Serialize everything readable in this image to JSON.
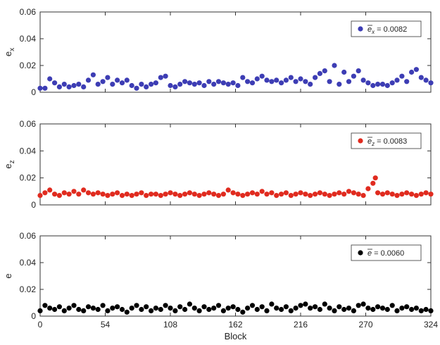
{
  "chart_data": [
    {
      "type": "scatter",
      "ylabel": "e_x",
      "ylabel_main": "e",
      "ylabel_sub": "x",
      "xlim": [
        0,
        324
      ],
      "ylim": [
        0,
        0.06
      ],
      "yticks": [
        0,
        0.02,
        0.04,
        0.06
      ],
      "ytick_labels": [
        "0",
        "0.02",
        "0.04",
        "0.06"
      ],
      "grid": false,
      "legend_position": "top-right",
      "series": [
        {
          "name": "ē_x = 0.0082",
          "legend_symbol": "e",
          "legend_sub": "x",
          "legend_value": "= 0.0082",
          "color": "#3d3db4",
          "x": [
            0,
            4,
            8,
            12,
            16,
            20,
            24,
            28,
            32,
            36,
            40,
            44,
            48,
            52,
            56,
            60,
            64,
            68,
            72,
            76,
            80,
            84,
            88,
            92,
            96,
            100,
            104,
            108,
            112,
            116,
            120,
            124,
            128,
            132,
            136,
            140,
            144,
            148,
            152,
            156,
            160,
            164,
            168,
            172,
            176,
            180,
            184,
            188,
            192,
            196,
            200,
            204,
            208,
            212,
            216,
            220,
            224,
            228,
            232,
            236,
            240,
            244,
            248,
            252,
            256,
            260,
            264,
            268,
            272,
            276,
            280,
            284,
            288,
            292,
            296,
            300,
            304,
            308,
            312,
            316,
            320,
            324
          ],
          "y": [
            0.003,
            0.003,
            0.01,
            0.007,
            0.004,
            0.006,
            0.004,
            0.005,
            0.006,
            0.004,
            0.009,
            0.013,
            0.006,
            0.008,
            0.011,
            0.006,
            0.009,
            0.007,
            0.009,
            0.005,
            0.003,
            0.006,
            0.004,
            0.006,
            0.007,
            0.011,
            0.012,
            0.005,
            0.004,
            0.006,
            0.008,
            0.007,
            0.006,
            0.007,
            0.005,
            0.008,
            0.006,
            0.008,
            0.007,
            0.006,
            0.007,
            0.005,
            0.011,
            0.008,
            0.007,
            0.01,
            0.012,
            0.009,
            0.008,
            0.009,
            0.007,
            0.009,
            0.011,
            0.008,
            0.01,
            0.008,
            0.006,
            0.011,
            0.014,
            0.016,
            0.008,
            0.02,
            0.006,
            0.015,
            0.008,
            0.012,
            0.016,
            0.009,
            0.007,
            0.005,
            0.006,
            0.006,
            0.005,
            0.007,
            0.009,
            0.012,
            0.008,
            0.015,
            0.017,
            0.011,
            0.009,
            0.007
          ]
        }
      ]
    },
    {
      "type": "scatter",
      "ylabel": "e_z",
      "ylabel_main": "e",
      "ylabel_sub": "z",
      "xlim": [
        0,
        324
      ],
      "ylim": [
        0,
        0.06
      ],
      "yticks": [
        0,
        0.02,
        0.04,
        0.06
      ],
      "ytick_labels": [
        "0",
        "0.02",
        "0.04",
        "0.06"
      ],
      "grid": false,
      "legend_position": "top-right",
      "series": [
        {
          "name": "ē_z = 0.0083",
          "legend_symbol": "e",
          "legend_sub": "z",
          "legend_value": "= 0.0083",
          "color": "#e02b1f",
          "x": [
            0,
            4,
            8,
            12,
            16,
            20,
            24,
            28,
            32,
            36,
            40,
            44,
            48,
            52,
            56,
            60,
            64,
            68,
            72,
            76,
            80,
            84,
            88,
            92,
            96,
            100,
            104,
            108,
            112,
            116,
            120,
            124,
            128,
            132,
            136,
            140,
            144,
            148,
            152,
            156,
            160,
            164,
            168,
            172,
            176,
            180,
            184,
            188,
            192,
            196,
            200,
            204,
            208,
            212,
            216,
            220,
            224,
            228,
            232,
            236,
            240,
            244,
            248,
            252,
            256,
            260,
            264,
            268,
            272,
            276,
            278,
            280,
            284,
            288,
            292,
            296,
            300,
            304,
            308,
            312,
            316,
            320,
            324
          ],
          "y": [
            0.007,
            0.009,
            0.011,
            0.008,
            0.007,
            0.009,
            0.008,
            0.01,
            0.008,
            0.011,
            0.009,
            0.008,
            0.009,
            0.008,
            0.007,
            0.008,
            0.009,
            0.007,
            0.008,
            0.007,
            0.008,
            0.009,
            0.007,
            0.008,
            0.008,
            0.007,
            0.008,
            0.009,
            0.008,
            0.007,
            0.008,
            0.009,
            0.008,
            0.007,
            0.008,
            0.009,
            0.008,
            0.007,
            0.008,
            0.011,
            0.009,
            0.008,
            0.007,
            0.008,
            0.009,
            0.008,
            0.01,
            0.008,
            0.009,
            0.007,
            0.008,
            0.009,
            0.007,
            0.008,
            0.009,
            0.008,
            0.007,
            0.008,
            0.009,
            0.008,
            0.007,
            0.008,
            0.009,
            0.008,
            0.01,
            0.009,
            0.008,
            0.007,
            0.012,
            0.016,
            0.02,
            0.009,
            0.008,
            0.009,
            0.008,
            0.007,
            0.008,
            0.009,
            0.008,
            0.007,
            0.008,
            0.009,
            0.008
          ]
        }
      ]
    },
    {
      "type": "scatter",
      "xlabel": "Block",
      "ylabel": "e",
      "ylabel_main": "e",
      "ylabel_sub": "",
      "xlim": [
        0,
        324
      ],
      "xticks": [
        0,
        54,
        108,
        162,
        216,
        270,
        324
      ],
      "xtick_labels": [
        "0",
        "54",
        "108",
        "162",
        "216",
        "270",
        "324"
      ],
      "ylim": [
        0,
        0.06
      ],
      "yticks": [
        0,
        0.02,
        0.04,
        0.06
      ],
      "ytick_labels": [
        "0",
        "0.02",
        "0.04",
        "0.06"
      ],
      "grid": false,
      "legend_position": "top-right",
      "series": [
        {
          "name": "ē = 0.0060",
          "legend_symbol": "e",
          "legend_sub": "",
          "legend_value": "= 0.0060",
          "color": "#000000",
          "x": [
            0,
            4,
            8,
            12,
            16,
            20,
            24,
            28,
            32,
            36,
            40,
            44,
            48,
            52,
            56,
            60,
            64,
            68,
            72,
            76,
            80,
            84,
            88,
            92,
            96,
            100,
            104,
            108,
            112,
            116,
            120,
            124,
            128,
            132,
            136,
            140,
            144,
            148,
            152,
            156,
            160,
            164,
            168,
            172,
            176,
            180,
            184,
            188,
            192,
            196,
            200,
            204,
            208,
            212,
            216,
            220,
            224,
            228,
            232,
            236,
            240,
            244,
            248,
            252,
            256,
            260,
            264,
            268,
            272,
            276,
            280,
            284,
            288,
            292,
            296,
            300,
            304,
            308,
            312,
            316,
            320,
            324
          ],
          "y": [
            0.004,
            0.008,
            0.006,
            0.005,
            0.007,
            0.004,
            0.006,
            0.008,
            0.005,
            0.004,
            0.007,
            0.006,
            0.005,
            0.008,
            0.004,
            0.006,
            0.007,
            0.005,
            0.003,
            0.006,
            0.008,
            0.005,
            0.007,
            0.004,
            0.006,
            0.005,
            0.008,
            0.006,
            0.004,
            0.007,
            0.005,
            0.009,
            0.006,
            0.004,
            0.007,
            0.005,
            0.006,
            0.008,
            0.004,
            0.006,
            0.007,
            0.005,
            0.003,
            0.006,
            0.008,
            0.005,
            0.007,
            0.004,
            0.009,
            0.006,
            0.005,
            0.007,
            0.004,
            0.006,
            0.008,
            0.009,
            0.006,
            0.007,
            0.005,
            0.009,
            0.006,
            0.004,
            0.007,
            0.005,
            0.006,
            0.004,
            0.008,
            0.009,
            0.006,
            0.005,
            0.007,
            0.006,
            0.005,
            0.008,
            0.004,
            0.006,
            0.007,
            0.005,
            0.006,
            0.004,
            0.005,
            0.004
          ]
        }
      ]
    }
  ]
}
